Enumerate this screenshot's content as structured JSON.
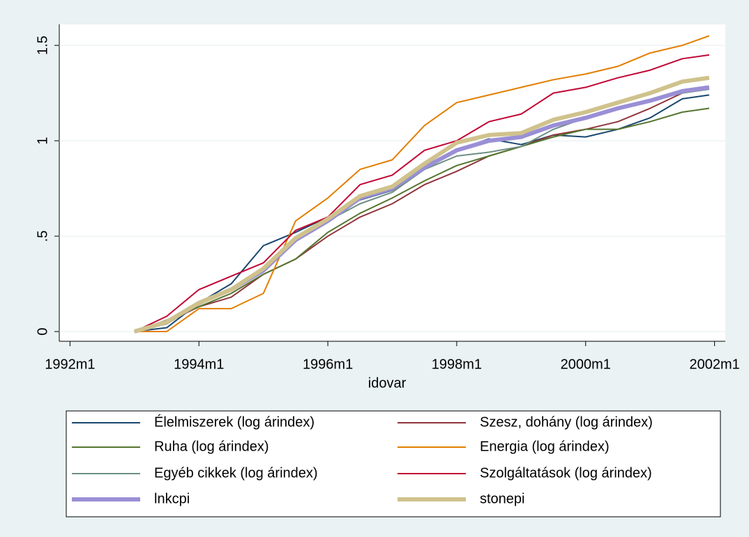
{
  "chart_data": {
    "type": "line",
    "x_label": "idovar",
    "x": [
      "1993m1",
      "1993m7",
      "1994m1",
      "1994m7",
      "1995m1",
      "1995m7",
      "1996m1",
      "1996m7",
      "1997m1",
      "1997m7",
      "1998m1",
      "1998m7",
      "1999m1",
      "1999m7",
      "2000m1",
      "2000m7",
      "2001m1",
      "2001m7",
      "2001m12"
    ],
    "xlim": [
      "1991m11",
      "2002m3"
    ],
    "xticks": [
      "1992m1",
      "1994m1",
      "1996m1",
      "1998m1",
      "2000m1",
      "2002m1"
    ],
    "ylim": [
      -0.051,
      1.61
    ],
    "yticks": [
      0,
      {
        "value": 0.5,
        "label": ".5"
      },
      1,
      1.5
    ],
    "grid": true,
    "legend_position": "bottom",
    "series": [
      {
        "name": "Élelmiszerek (log árindex)",
        "color": "#1a476f",
        "line_width": 2,
        "values": [
          0,
          0.02,
          0.15,
          0.25,
          0.45,
          0.52,
          0.6,
          0.69,
          0.74,
          0.85,
          0.95,
          1.01,
          0.98,
          1.03,
          1.02,
          1.06,
          1.12,
          1.22,
          1.24
        ]
      },
      {
        "name": "Szesz, dohány (log árindex)",
        "color": "#90353b",
        "line_width": 2,
        "values": [
          0,
          0.05,
          0.13,
          0.18,
          0.3,
          0.38,
          0.5,
          0.6,
          0.67,
          0.77,
          0.84,
          0.92,
          0.97,
          1.03,
          1.06,
          1.1,
          1.17,
          1.25,
          1.28
        ]
      },
      {
        "name": "Ruha (log árindex)",
        "color": "#55752f",
        "line_width": 2,
        "values": [
          0,
          0.06,
          0.13,
          0.2,
          0.3,
          0.38,
          0.52,
          0.62,
          0.7,
          0.79,
          0.87,
          0.92,
          0.97,
          1.02,
          1.06,
          1.06,
          1.1,
          1.15,
          1.17
        ]
      },
      {
        "name": "Energia (log árindex)",
        "color": "#e37e00",
        "line_width": 2,
        "values": [
          0,
          0,
          0.12,
          0.12,
          0.2,
          0.58,
          0.7,
          0.85,
          0.9,
          1.08,
          1.2,
          1.24,
          1.28,
          1.32,
          1.35,
          1.39,
          1.46,
          1.5,
          1.55
        ]
      },
      {
        "name": "Egyéb cikkek (log árindex)",
        "color": "#6e8e84",
        "line_width": 2,
        "values": [
          0,
          0.04,
          0.14,
          0.22,
          0.32,
          0.48,
          0.58,
          0.67,
          0.73,
          0.85,
          0.92,
          0.94,
          0.97,
          1.06,
          1.12,
          1.17,
          1.21,
          1.25,
          1.27
        ]
      },
      {
        "name": "Szolgáltatások (log árindex)",
        "color": "#c10534",
        "line_width": 2,
        "values": [
          0,
          0.08,
          0.22,
          0.29,
          0.36,
          0.53,
          0.6,
          0.77,
          0.82,
          0.95,
          1.0,
          1.1,
          1.14,
          1.25,
          1.28,
          1.33,
          1.37,
          1.43,
          1.45
        ]
      },
      {
        "name": "lnkcpi",
        "color": "#9a8fd6",
        "line_width": 6,
        "values": [
          0,
          0.05,
          0.15,
          0.22,
          0.32,
          0.48,
          0.58,
          0.7,
          0.75,
          0.86,
          0.95,
          1.0,
          1.02,
          1.08,
          1.12,
          1.17,
          1.21,
          1.26,
          1.28
        ]
      },
      {
        "name": "stonepi",
        "color": "#cfc28c",
        "line_width": 6,
        "values": [
          0,
          0.05,
          0.15,
          0.22,
          0.33,
          0.49,
          0.59,
          0.71,
          0.76,
          0.88,
          0.99,
          1.03,
          1.04,
          1.11,
          1.15,
          1.2,
          1.25,
          1.31,
          1.33
        ]
      }
    ]
  }
}
